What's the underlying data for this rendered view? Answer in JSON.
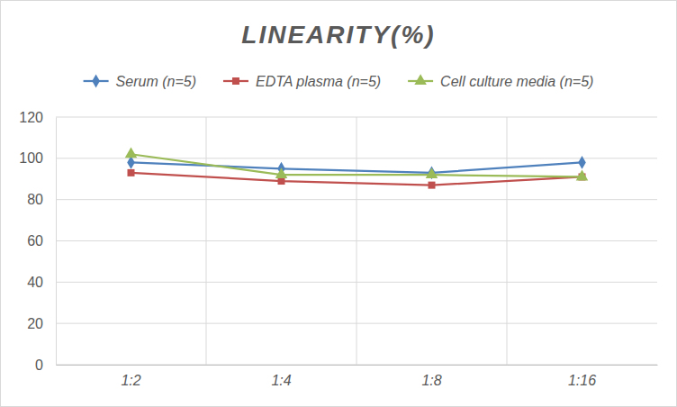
{
  "chart_data": {
    "type": "line",
    "title": "LINEARITY(%)",
    "categories": [
      "1:2",
      "1:4",
      "1:8",
      "1:16"
    ],
    "series": [
      {
        "name": "Serum (n=5)",
        "color": "#4f81bd",
        "marker": "diamond",
        "values": [
          98,
          95,
          93,
          98
        ]
      },
      {
        "name": "EDTA plasma (n=5)",
        "color": "#c0504d",
        "marker": "square",
        "values": [
          93,
          89,
          87,
          91
        ]
      },
      {
        "name": "Cell culture media (n=5)",
        "color": "#9bbb59",
        "marker": "triangle",
        "values": [
          102,
          92,
          92,
          91
        ]
      }
    ],
    "ylim": [
      0,
      120
    ],
    "yticks": [
      0,
      20,
      40,
      60,
      80,
      100,
      120
    ],
    "grid": true,
    "legend": "top"
  }
}
